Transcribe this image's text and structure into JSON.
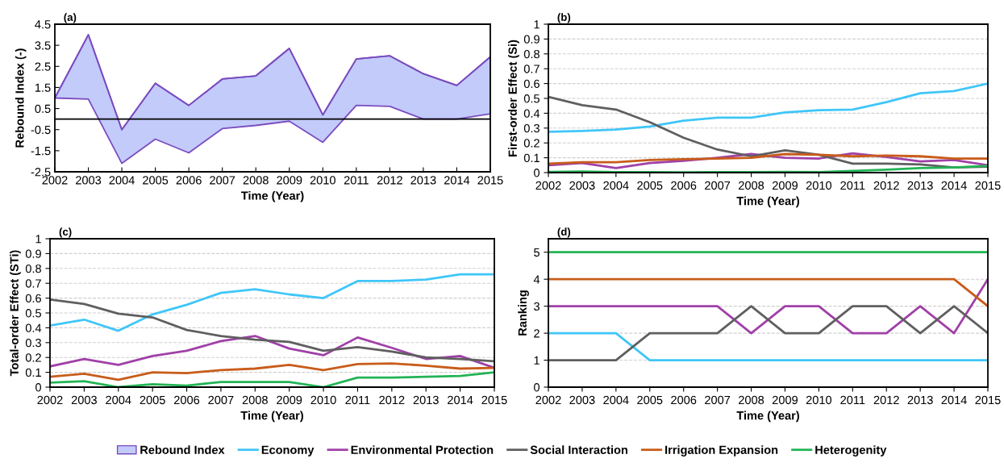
{
  "chart_data": [
    {
      "type": "area",
      "title": "(a)",
      "xlabel": "Time (Year)",
      "ylabel": "Rebound Index (-)",
      "x": [
        2002,
        2003,
        2004,
        2005,
        2006,
        2007,
        2008,
        2009,
        2010,
        2011,
        2012,
        2013,
        2014,
        2015
      ],
      "series": [
        {
          "name": "Rebound Index",
          "type": "line",
          "color": "#7b4cc0",
          "values": [
            1.0,
            4.0,
            -0.5,
            1.7,
            0.65,
            1.9,
            2.05,
            3.35,
            0.2,
            2.85,
            3.0,
            2.15,
            1.6,
            2.95
          ],
          "upper": [
            1.0,
            4.0,
            -0.5,
            1.7,
            0.65,
            1.9,
            2.05,
            3.35,
            0.2,
            2.85,
            3.0,
            2.15,
            1.6,
            2.95
          ],
          "lower": [
            1.0,
            0.95,
            -2.1,
            -0.95,
            -1.6,
            -0.45,
            -0.3,
            -0.1,
            -1.1,
            0.65,
            0.6,
            0.0,
            0.0,
            0.25
          ]
        }
      ],
      "ref_lines": [
        {
          "axis": "y",
          "value": 0,
          "color": "#000000"
        }
      ],
      "xlim": [
        2002,
        2015
      ],
      "xticks": [
        2002,
        2003,
        2004,
        2005,
        2006,
        2007,
        2008,
        2009,
        2010,
        2011,
        2012,
        2013,
        2014,
        2015
      ],
      "ylim": [
        -2.5,
        4.5
      ],
      "yticks": [
        -2.5,
        -1.5,
        -0.5,
        0.5,
        1.5,
        2.5,
        3.5,
        4.5
      ],
      "grid": false,
      "legend": "bottom"
    },
    {
      "type": "line",
      "title": "(b)",
      "xlabel": "Time (Year)",
      "ylabel": "First-order Effect (Si)",
      "x": [
        2002,
        2003,
        2004,
        2005,
        2006,
        2007,
        2008,
        2009,
        2010,
        2011,
        2012,
        2013,
        2014,
        2015
      ],
      "series": [
        {
          "name": "Economy",
          "color": "#3fc6f8",
          "values": [
            0.275,
            0.28,
            0.29,
            0.31,
            0.35,
            0.37,
            0.37,
            0.405,
            0.42,
            0.425,
            0.475,
            0.535,
            0.55,
            0.6
          ]
        },
        {
          "name": "Environmental Protection",
          "color": "#a040a8",
          "values": [
            0.05,
            0.065,
            0.03,
            0.065,
            0.08,
            0.1,
            0.125,
            0.1,
            0.095,
            0.13,
            0.105,
            0.075,
            0.085,
            0.05
          ]
        },
        {
          "name": "Social Interaction",
          "color": "#5f5f5f",
          "values": [
            0.51,
            0.455,
            0.425,
            0.34,
            0.235,
            0.155,
            0.11,
            0.15,
            0.12,
            0.06,
            0.06,
            0.055,
            0.035,
            0.04
          ]
        },
        {
          "name": "Irrigation Expansion",
          "color": "#c85c1a",
          "values": [
            0.06,
            0.07,
            0.07,
            0.085,
            0.09,
            0.095,
            0.1,
            0.125,
            0.12,
            0.11,
            0.115,
            0.11,
            0.095,
            0.095
          ]
        },
        {
          "name": "Heterogenity",
          "color": "#22b455",
          "values": [
            0.005,
            0.008,
            0.003,
            0.003,
            0.002,
            0.003,
            0.003,
            0.005,
            0.003,
            0.012,
            0.02,
            0.03,
            0.035,
            0.045
          ]
        }
      ],
      "xlim": [
        2002,
        2015
      ],
      "xticks": [
        2002,
        2003,
        2004,
        2005,
        2006,
        2007,
        2008,
        2009,
        2010,
        2011,
        2012,
        2013,
        2014,
        2015
      ],
      "ylim": [
        0,
        1
      ],
      "yticks": [
        0,
        0.1,
        0.2,
        0.3,
        0.4,
        0.5,
        0.6,
        0.7,
        0.8,
        0.9,
        1
      ],
      "grid": "y",
      "legend": "bottom"
    },
    {
      "type": "line",
      "title": "(c)",
      "xlabel": "Time (Year)",
      "ylabel": "Total-order Effect (STi)",
      "x": [
        2002,
        2003,
        2004,
        2005,
        2006,
        2007,
        2008,
        2009,
        2010,
        2011,
        2012,
        2013,
        2014,
        2015
      ],
      "series": [
        {
          "color": "#3fc6f8",
          "values": [
            0.415,
            0.455,
            0.38,
            0.49,
            0.555,
            0.635,
            0.66,
            0.625,
            0.6,
            0.715,
            0.715,
            0.725,
            0.76,
            0.76
          ]
        },
        {
          "color": "#a040a8",
          "values": [
            0.14,
            0.19,
            0.15,
            0.21,
            0.245,
            0.31,
            0.345,
            0.26,
            0.215,
            0.335,
            0.265,
            0.19,
            0.21,
            0.13
          ]
        },
        {
          "color": "#5f5f5f",
          "values": [
            0.59,
            0.56,
            0.495,
            0.47,
            0.385,
            0.345,
            0.32,
            0.305,
            0.245,
            0.27,
            0.24,
            0.2,
            0.19,
            0.175
          ]
        },
        {
          "color": "#c85c1a",
          "values": [
            0.07,
            0.09,
            0.05,
            0.1,
            0.095,
            0.115,
            0.125,
            0.15,
            0.115,
            0.155,
            0.16,
            0.145,
            0.125,
            0.13
          ]
        },
        {
          "color": "#22b455",
          "values": [
            0.03,
            0.04,
            0.0,
            0.02,
            0.01,
            0.035,
            0.035,
            0.035,
            0.0,
            0.065,
            0.065,
            0.07,
            0.075,
            0.1
          ]
        }
      ],
      "xlim": [
        2002,
        2015
      ],
      "xticks": [
        2002,
        2003,
        2004,
        2005,
        2006,
        2007,
        2008,
        2009,
        2010,
        2011,
        2012,
        2013,
        2014,
        2015
      ],
      "ylim": [
        0,
        1
      ],
      "yticks": [
        0,
        0.1,
        0.2,
        0.3,
        0.4,
        0.5,
        0.6,
        0.7,
        0.8,
        0.9,
        1
      ],
      "grid": "y"
    },
    {
      "type": "line",
      "title": "(d)",
      "xlabel": "Time (Year)",
      "ylabel": "Ranking",
      "x": [
        2002,
        2003,
        2004,
        2005,
        2006,
        2007,
        2008,
        2009,
        2010,
        2011,
        2012,
        2013,
        2014,
        2015
      ],
      "series": [
        {
          "color": "#3fc6f8",
          "values": [
            2,
            2,
            2,
            1,
            1,
            1,
            1,
            1,
            1,
            1,
            1,
            1,
            1,
            1
          ]
        },
        {
          "color": "#a040a8",
          "values": [
            3,
            3,
            3,
            3,
            3,
            3,
            2,
            3,
            3,
            2,
            2,
            3,
            2,
            4
          ]
        },
        {
          "color": "#5f5f5f",
          "values": [
            1,
            1,
            1,
            2,
            2,
            2,
            3,
            2,
            2,
            3,
            3,
            2,
            3,
            2
          ]
        },
        {
          "color": "#c85c1a",
          "values": [
            4,
            4,
            4,
            4,
            4,
            4,
            4,
            4,
            4,
            4,
            4,
            4,
            4,
            3
          ]
        },
        {
          "color": "#22b455",
          "values": [
            5,
            5,
            5,
            5,
            5,
            5,
            5,
            5,
            5,
            5,
            5,
            5,
            5,
            5
          ]
        }
      ],
      "xlim": [
        2002,
        2015
      ],
      "xticks": [
        2002,
        2003,
        2004,
        2005,
        2006,
        2007,
        2008,
        2009,
        2010,
        2011,
        2012,
        2013,
        2014,
        2015
      ],
      "ylim": [
        0,
        5.5
      ],
      "yticks": [
        0,
        1,
        2,
        3,
        4,
        5
      ],
      "grid": "y"
    }
  ]
}
